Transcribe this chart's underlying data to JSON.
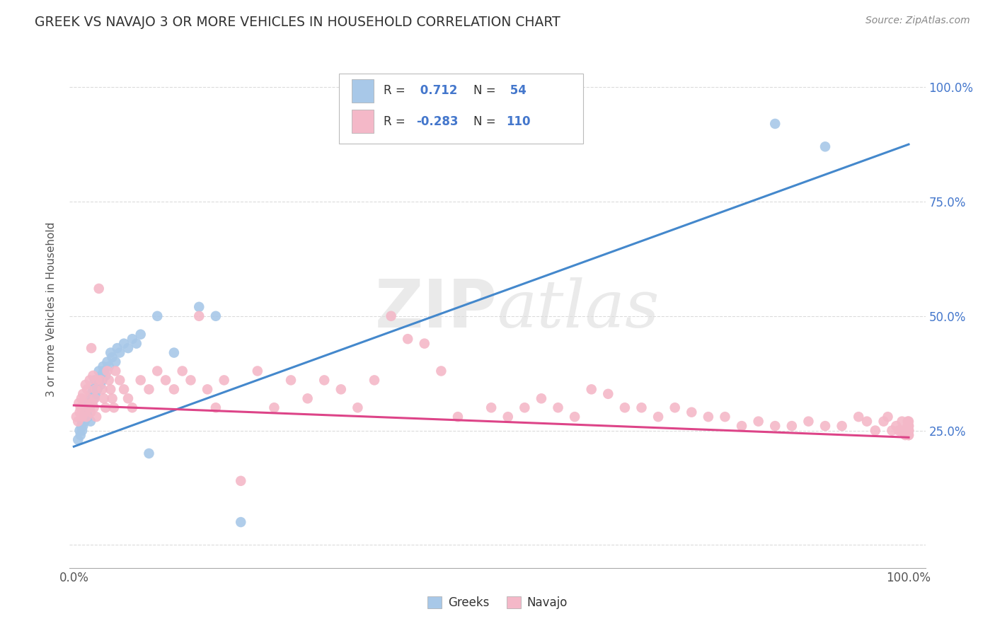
{
  "title": "GREEK VS NAVAJO 3 OR MORE VEHICLES IN HOUSEHOLD CORRELATION CHART",
  "source": "Source: ZipAtlas.com",
  "ylabel": "3 or more Vehicles in Household",
  "watermark": "ZIPatlas",
  "legend_label1": "Greeks",
  "legend_label2": "Navajo",
  "blue_color": "#a8c8e8",
  "pink_color": "#f4b8c8",
  "blue_line_color": "#4488cc",
  "pink_line_color": "#dd4488",
  "blue_text_color": "#4477cc",
  "dark_text_color": "#333333",
  "grid_color": "#cccccc",
  "background_color": "#ffffff",
  "greek_x": [
    0.005,
    0.007,
    0.008,
    0.009,
    0.01,
    0.01,
    0.011,
    0.012,
    0.013,
    0.014,
    0.015,
    0.015,
    0.016,
    0.017,
    0.018,
    0.019,
    0.02,
    0.02,
    0.021,
    0.022,
    0.023,
    0.024,
    0.025,
    0.026,
    0.027,
    0.028,
    0.03,
    0.031,
    0.032,
    0.033,
    0.034,
    0.035,
    0.036,
    0.038,
    0.04,
    0.042,
    0.044,
    0.046,
    0.05,
    0.052,
    0.055,
    0.06,
    0.065,
    0.07,
    0.075,
    0.08,
    0.09,
    0.1,
    0.12,
    0.15,
    0.17,
    0.2,
    0.84,
    0.9
  ],
  "greek_y": [
    0.23,
    0.25,
    0.24,
    0.26,
    0.25,
    0.27,
    0.26,
    0.28,
    0.27,
    0.29,
    0.28,
    0.3,
    0.29,
    0.28,
    0.31,
    0.3,
    0.32,
    0.27,
    0.33,
    0.31,
    0.34,
    0.32,
    0.36,
    0.33,
    0.35,
    0.34,
    0.38,
    0.36,
    0.35,
    0.37,
    0.36,
    0.39,
    0.38,
    0.37,
    0.4,
    0.39,
    0.42,
    0.41,
    0.4,
    0.43,
    0.42,
    0.44,
    0.43,
    0.45,
    0.44,
    0.46,
    0.2,
    0.5,
    0.42,
    0.52,
    0.5,
    0.05,
    0.92,
    0.87
  ],
  "navajo_x": [
    0.003,
    0.005,
    0.006,
    0.007,
    0.008,
    0.009,
    0.01,
    0.011,
    0.012,
    0.013,
    0.014,
    0.015,
    0.016,
    0.017,
    0.018,
    0.019,
    0.02,
    0.021,
    0.022,
    0.023,
    0.024,
    0.025,
    0.026,
    0.027,
    0.028,
    0.03,
    0.032,
    0.034,
    0.036,
    0.038,
    0.04,
    0.042,
    0.044,
    0.046,
    0.048,
    0.05,
    0.055,
    0.06,
    0.065,
    0.07,
    0.08,
    0.09,
    0.1,
    0.11,
    0.12,
    0.13,
    0.14,
    0.15,
    0.16,
    0.17,
    0.18,
    0.2,
    0.22,
    0.24,
    0.26,
    0.28,
    0.3,
    0.32,
    0.34,
    0.36,
    0.38,
    0.4,
    0.42,
    0.44,
    0.46,
    0.5,
    0.52,
    0.54,
    0.56,
    0.58,
    0.6,
    0.62,
    0.64,
    0.66,
    0.68,
    0.7,
    0.72,
    0.74,
    0.76,
    0.78,
    0.8,
    0.82,
    0.84,
    0.86,
    0.88,
    0.9,
    0.92,
    0.94,
    0.95,
    0.96,
    0.97,
    0.975,
    0.98,
    0.985,
    0.988,
    0.99,
    0.992,
    0.994,
    0.996,
    0.998,
    0.999,
    0.999,
    1.0,
    1.0,
    1.0,
    1.0,
    1.0,
    1.0,
    1.0,
    1.0
  ],
  "navajo_y": [
    0.28,
    0.27,
    0.31,
    0.29,
    0.3,
    0.32,
    0.28,
    0.33,
    0.31,
    0.29,
    0.35,
    0.28,
    0.34,
    0.32,
    0.3,
    0.36,
    0.29,
    0.43,
    0.31,
    0.37,
    0.3,
    0.32,
    0.34,
    0.28,
    0.36,
    0.56,
    0.36,
    0.34,
    0.32,
    0.3,
    0.38,
    0.36,
    0.34,
    0.32,
    0.3,
    0.38,
    0.36,
    0.34,
    0.32,
    0.3,
    0.36,
    0.34,
    0.38,
    0.36,
    0.34,
    0.38,
    0.36,
    0.5,
    0.34,
    0.3,
    0.36,
    0.14,
    0.38,
    0.3,
    0.36,
    0.32,
    0.36,
    0.34,
    0.3,
    0.36,
    0.5,
    0.45,
    0.44,
    0.38,
    0.28,
    0.3,
    0.28,
    0.3,
    0.32,
    0.3,
    0.28,
    0.34,
    0.33,
    0.3,
    0.3,
    0.28,
    0.3,
    0.29,
    0.28,
    0.28,
    0.26,
    0.27,
    0.26,
    0.26,
    0.27,
    0.26,
    0.26,
    0.28,
    0.27,
    0.25,
    0.27,
    0.28,
    0.25,
    0.26,
    0.25,
    0.25,
    0.27,
    0.25,
    0.24,
    0.25,
    0.26,
    0.27,
    0.25,
    0.24,
    0.27,
    0.26,
    0.25,
    0.24,
    0.26,
    0.25
  ],
  "greek_line_x0": 0.0,
  "greek_line_y0": 0.215,
  "greek_line_x1": 1.0,
  "greek_line_y1": 0.875,
  "navajo_line_x0": 0.0,
  "navajo_line_y0": 0.305,
  "navajo_line_x1": 1.0,
  "navajo_line_y1": 0.235,
  "xlim": [
    -0.005,
    1.02
  ],
  "ylim": [
    -0.05,
    1.08
  ],
  "yticks": [
    0.0,
    0.25,
    0.5,
    0.75,
    1.0
  ],
  "ytick_right_labels": [
    "",
    "25.0%",
    "50.0%",
    "75.0%",
    "100.0%"
  ],
  "xtick_left_label": "0.0%",
  "xtick_right_label": "100.0%"
}
